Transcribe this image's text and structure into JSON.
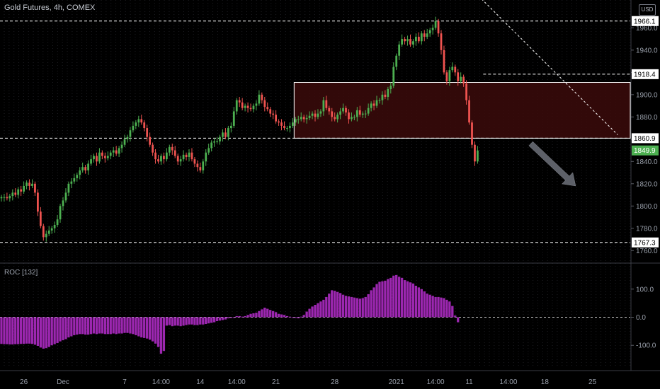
{
  "header": {
    "title": "Gold Futures, 4h, COMEX",
    "currency": "USD"
  },
  "roc": {
    "title": "ROC [132]"
  },
  "colors": {
    "background": "#000000",
    "up": "#4caf50",
    "down": "#ef5350",
    "roc": "#9c27b0",
    "zone_fill": "#3b0a0a",
    "price_label": "#4caf50"
  },
  "chart_data": [
    {
      "type": "candlestick",
      "title": "Gold Futures, 4h, COMEX",
      "y_ticks": [
        1760.0,
        1780.0,
        1800.0,
        1820.0,
        1840.0,
        1860.0,
        1880.0,
        1900.0,
        1920.0,
        1940.0,
        1960.0
      ],
      "y_tick_labels": [
        "1760.0",
        "1780.0",
        "1800.0",
        "1820.0",
        "1840.0",
        "1860.0",
        "1880.0",
        "1900.0",
        "1920.0",
        "1940.0",
        "1960.0"
      ],
      "ylim": [
        1750,
        1985
      ],
      "x_tick_labels": [
        "26",
        "Dec",
        "7",
        "14:00",
        "14",
        "14:00",
        "21",
        "28",
        "2021",
        "14:00",
        "11",
        "14:00",
        "18",
        "25"
      ],
      "x_range_bars": [
        0,
        225
      ],
      "price_levels": [
        {
          "label": "1966.1",
          "value": 1966.1
        },
        {
          "label": "1918.4",
          "value": 1918.4
        },
        {
          "label": "1860.9",
          "value": 1860.9
        },
        {
          "label": "1767.3",
          "value": 1767.3
        }
      ],
      "last_price": {
        "label": "1849.9",
        "value": 1849.9
      },
      "zone": {
        "top": 1911,
        "bottom": 1860.9,
        "start_bar": 105,
        "end_bar": 225
      },
      "trend_line": {
        "from": {
          "bar": 165,
          "price": 2002
        },
        "to": {
          "bar": 220,
          "price": 1864
        }
      },
      "arrow": {
        "from": {
          "bar": 189,
          "price": 1856
        },
        "to": {
          "bar": 205,
          "price": 1818
        }
      },
      "closes": [
        1808,
        1808,
        1807,
        1809,
        1812,
        1810,
        1815,
        1813,
        1818,
        1821,
        1818,
        1820,
        1812,
        1795,
        1782,
        1772,
        1775,
        1778,
        1780,
        1783,
        1788,
        1800,
        1805,
        1812,
        1820,
        1822,
        1825,
        1828,
        1832,
        1835,
        1832,
        1838,
        1842,
        1845,
        1840,
        1848,
        1845,
        1843,
        1845,
        1848,
        1850,
        1847,
        1852,
        1855,
        1860,
        1862,
        1868,
        1872,
        1875,
        1878,
        1875,
        1870,
        1862,
        1855,
        1848,
        1842,
        1840,
        1845,
        1842,
        1848,
        1853,
        1850,
        1845,
        1840,
        1842,
        1846,
        1844,
        1848,
        1842,
        1838,
        1835,
        1832,
        1840,
        1848,
        1852,
        1857,
        1858,
        1858,
        1862,
        1866,
        1862,
        1870,
        1872,
        1885,
        1895,
        1893,
        1888,
        1890,
        1888,
        1887,
        1890,
        1892,
        1900,
        1895,
        1889,
        1887,
        1883,
        1882,
        1876,
        1875,
        1872,
        1870,
        1870,
        1872,
        1875,
        1878,
        1878,
        1880,
        1878,
        1879,
        1881,
        1883,
        1880,
        1883,
        1885,
        1895,
        1888,
        1885,
        1880,
        1878,
        1882,
        1885,
        1888,
        1884,
        1878,
        1880,
        1880,
        1886,
        1882,
        1883,
        1883,
        1888,
        1892,
        1890,
        1895,
        1895,
        1900,
        1898,
        1905,
        1908,
        1925,
        1935,
        1945,
        1950,
        1948,
        1950,
        1945,
        1948,
        1952,
        1948,
        1955,
        1952,
        1955,
        1958,
        1960,
        1966,
        1955,
        1940,
        1920,
        1912,
        1922,
        1925,
        1920,
        1912,
        1916,
        1910,
        1895,
        1875,
        1855,
        1840,
        1849.9
      ]
    },
    {
      "type": "bar",
      "title": "ROC [132]",
      "y_ticks": [
        -100.0,
        0.0,
        100.0
      ],
      "y_tick_labels": [
        "-100.0",
        "0.0",
        "100.0"
      ],
      "ylim": [
        -180,
        185
      ],
      "values": [
        -95,
        -96,
        -96,
        -97,
        -97,
        -96,
        -96,
        -95,
        -95,
        -94,
        -94,
        -95,
        -98,
        -102,
        -108,
        -112,
        -110,
        -106,
        -100,
        -96,
        -92,
        -86,
        -82,
        -78,
        -72,
        -68,
        -64,
        -62,
        -60,
        -60,
        -62,
        -62,
        -60,
        -58,
        -60,
        -58,
        -58,
        -60,
        -60,
        -60,
        -58,
        -60,
        -58,
        -58,
        -56,
        -56,
        -58,
        -60,
        -64,
        -68,
        -72,
        -74,
        -76,
        -80,
        -86,
        -94,
        -106,
        -130,
        -120,
        -30,
        -28,
        -32,
        -30,
        -30,
        -32,
        -30,
        -28,
        -26,
        -26,
        -28,
        -28,
        -26,
        -26,
        -24,
        -22,
        -20,
        -18,
        -14,
        -12,
        -10,
        -8,
        -4,
        -2,
        0,
        4,
        4,
        2,
        4,
        8,
        12,
        14,
        16,
        22,
        28,
        34,
        30,
        26,
        22,
        18,
        12,
        10,
        8,
        4,
        2,
        0,
        -2,
        -4,
        2,
        8,
        20,
        30,
        38,
        44,
        50,
        56,
        62,
        72,
        84,
        96,
        94,
        90,
        86,
        80,
        76,
        74,
        72,
        70,
        68,
        66,
        68,
        72,
        82,
        96,
        106,
        118,
        126,
        128,
        130,
        136,
        140,
        148,
        150,
        144,
        140,
        132,
        128,
        124,
        120,
        112,
        106,
        100,
        92,
        84,
        80,
        76,
        72,
        72,
        70,
        68,
        62,
        56,
        40,
        6,
        -18
      ]
    }
  ]
}
